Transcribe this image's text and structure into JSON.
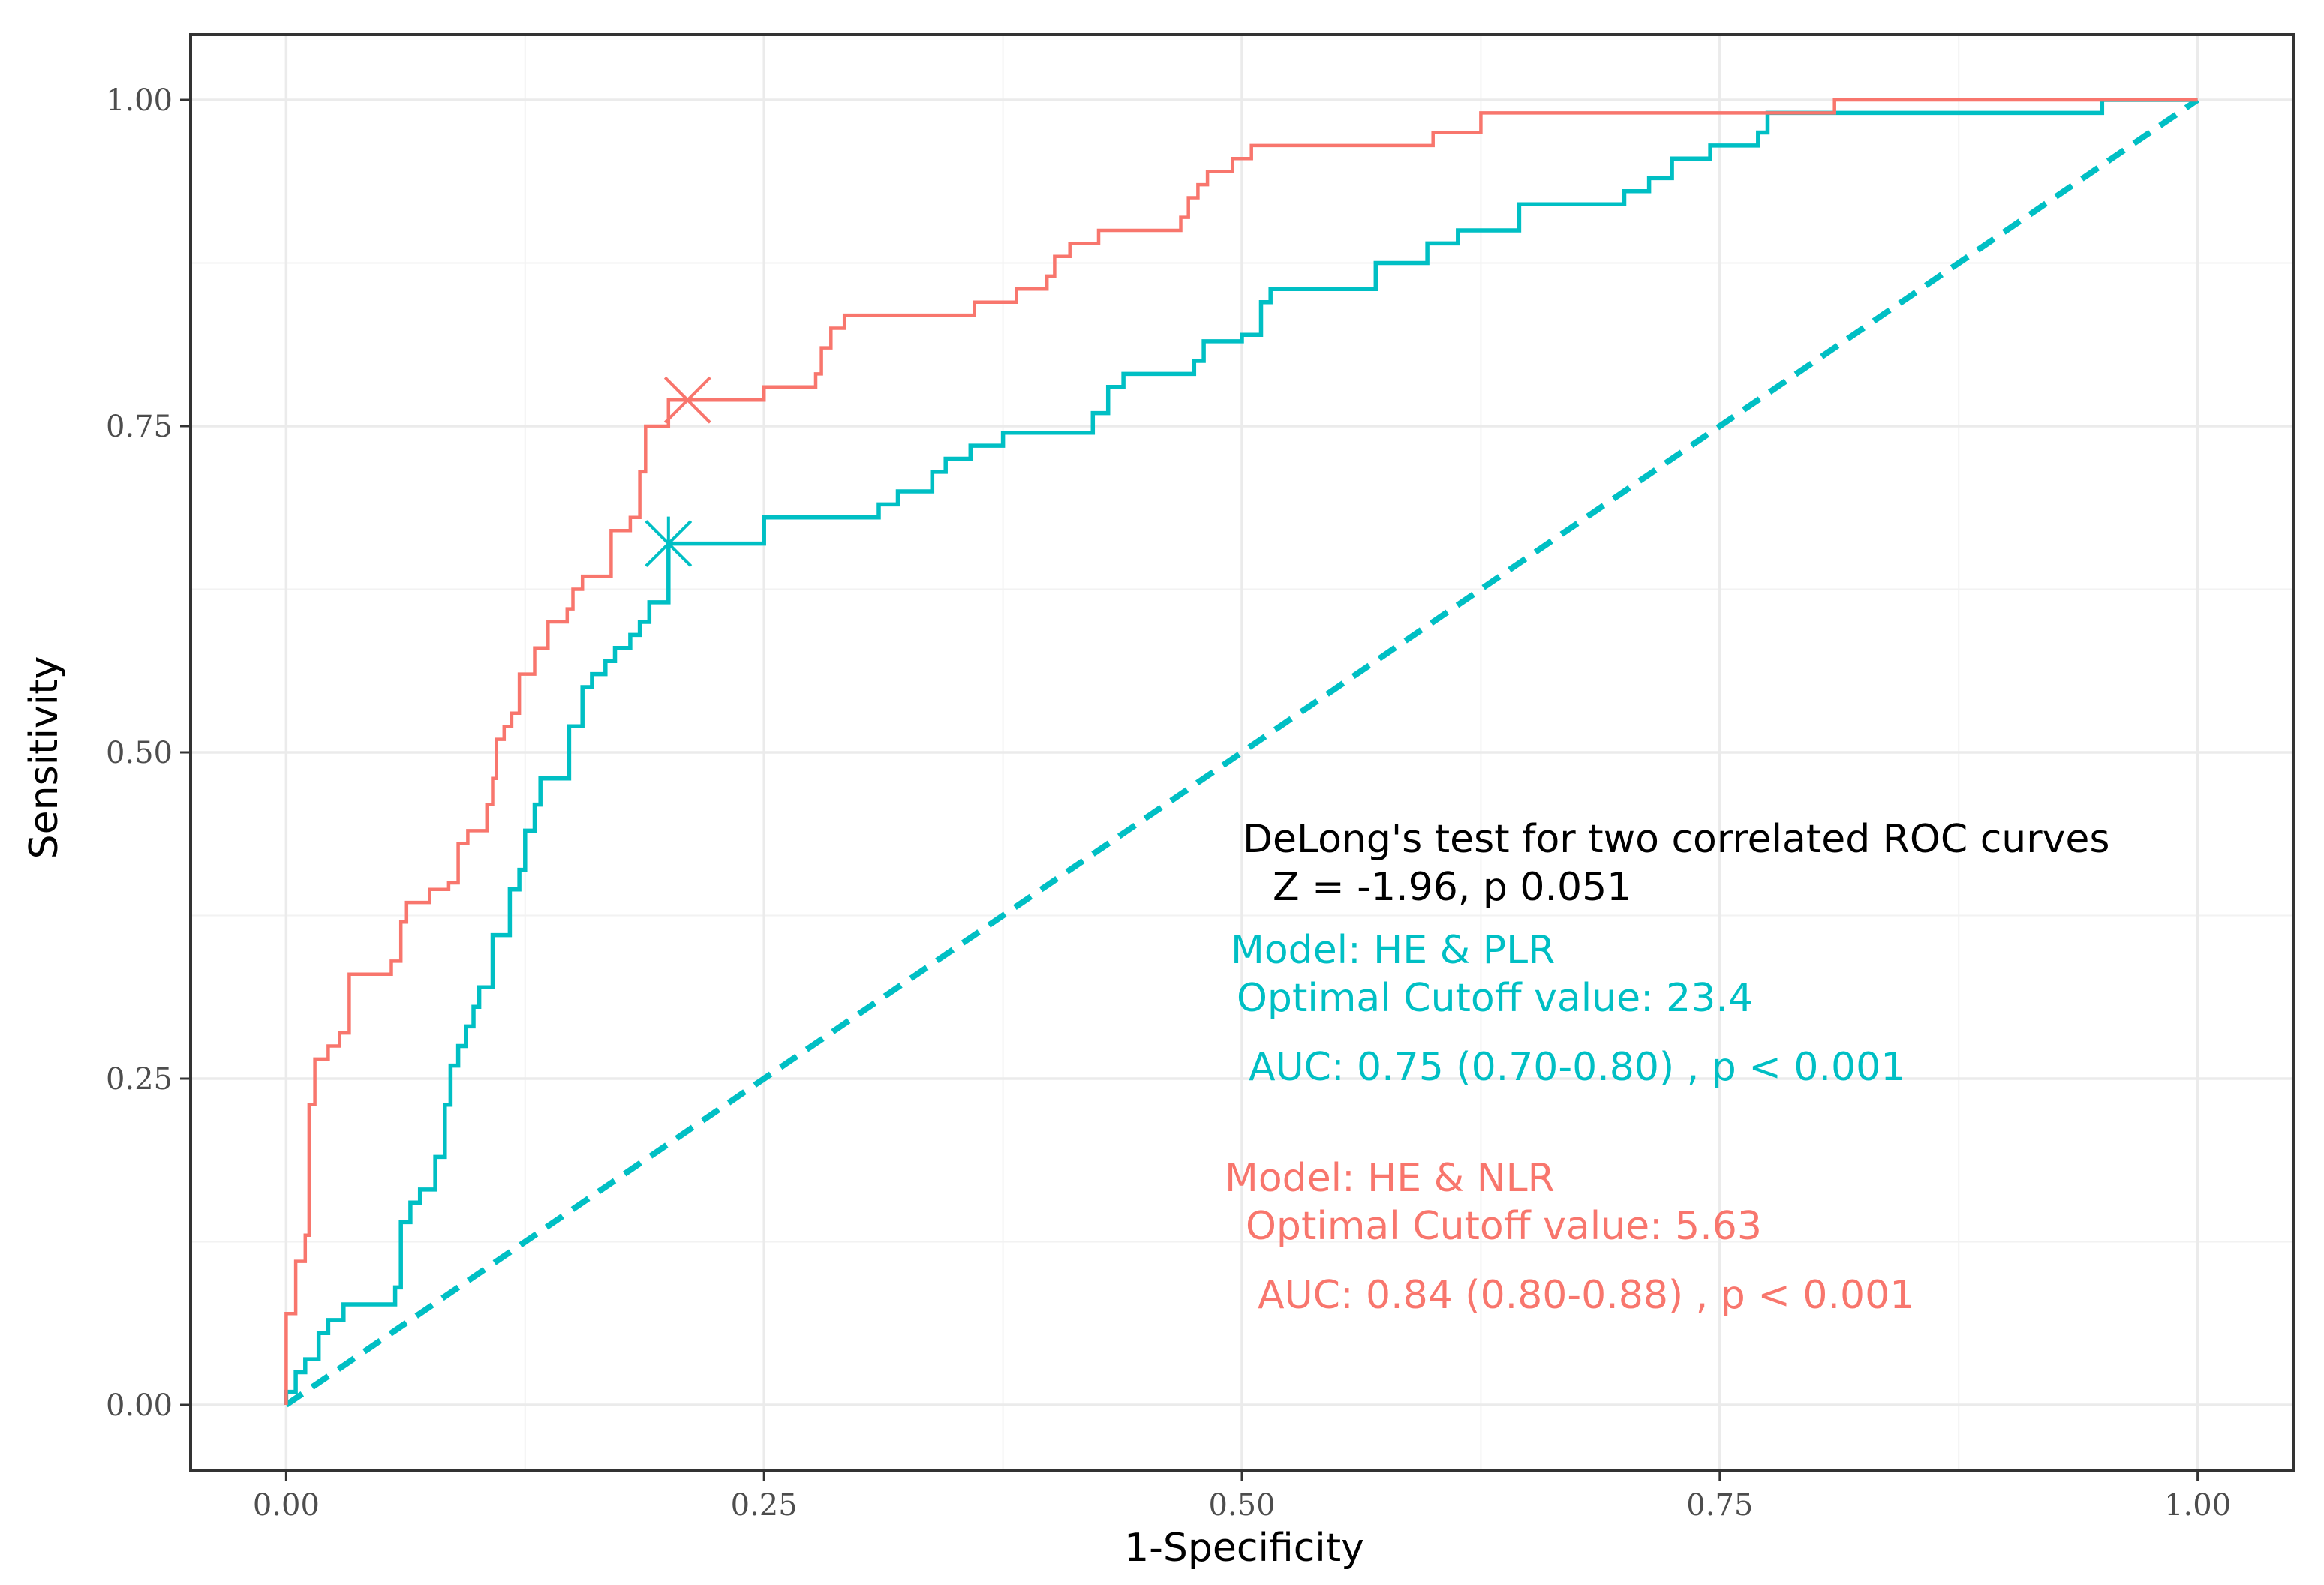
{
  "chart_data": {
    "type": "line",
    "xlabel": "1-Specificity",
    "ylabel": "Sensitivity",
    "xlim": [
      -0.05,
      1.05
    ],
    "ylim": [
      -0.05,
      1.05
    ],
    "x_ticks": [
      0,
      0.25,
      0.5,
      0.75,
      1.0
    ],
    "x_tick_labels": [
      "0.00",
      "0.25",
      "0.50",
      "0.75",
      "1.00"
    ],
    "y_ticks": [
      0,
      0.25,
      0.5,
      0.75,
      1.0
    ],
    "y_tick_labels": [
      "0.00",
      "0.25",
      "0.50",
      "0.75",
      "1.00"
    ],
    "grid": true,
    "colors": {
      "nlr": "#F8766D",
      "plr": "#00BFC4"
    },
    "series": [
      {
        "name": "Model: HE & NLR",
        "color": "#F8766D",
        "optimal_point": [
          0.21,
          0.77
        ],
        "points": [
          [
            0,
            0
          ],
          [
            0,
            0.07
          ],
          [
            0.005,
            0.07
          ],
          [
            0.005,
            0.11
          ],
          [
            0.01,
            0.11
          ],
          [
            0.01,
            0.13
          ],
          [
            0.012,
            0.13
          ],
          [
            0.012,
            0.23
          ],
          [
            0.015,
            0.23
          ],
          [
            0.015,
            0.265
          ],
          [
            0.022,
            0.265
          ],
          [
            0.022,
            0.275
          ],
          [
            0.028,
            0.275
          ],
          [
            0.028,
            0.285
          ],
          [
            0.033,
            0.285
          ],
          [
            0.033,
            0.33
          ],
          [
            0.055,
            0.33
          ],
          [
            0.055,
            0.34
          ],
          [
            0.06,
            0.34
          ],
          [
            0.06,
            0.37
          ],
          [
            0.063,
            0.37
          ],
          [
            0.063,
            0.385
          ],
          [
            0.075,
            0.385
          ],
          [
            0.075,
            0.395
          ],
          [
            0.085,
            0.395
          ],
          [
            0.085,
            0.4
          ],
          [
            0.09,
            0.4
          ],
          [
            0.09,
            0.43
          ],
          [
            0.095,
            0.43
          ],
          [
            0.095,
            0.44
          ],
          [
            0.105,
            0.44
          ],
          [
            0.105,
            0.46
          ],
          [
            0.108,
            0.46
          ],
          [
            0.108,
            0.48
          ],
          [
            0.11,
            0.48
          ],
          [
            0.11,
            0.51
          ],
          [
            0.114,
            0.51
          ],
          [
            0.114,
            0.52
          ],
          [
            0.118,
            0.52
          ],
          [
            0.118,
            0.53
          ],
          [
            0.122,
            0.53
          ],
          [
            0.122,
            0.56
          ],
          [
            0.13,
            0.56
          ],
          [
            0.13,
            0.58
          ],
          [
            0.137,
            0.58
          ],
          [
            0.137,
            0.6
          ],
          [
            0.147,
            0.6
          ],
          [
            0.147,
            0.61
          ],
          [
            0.15,
            0.61
          ],
          [
            0.15,
            0.625
          ],
          [
            0.155,
            0.625
          ],
          [
            0.155,
            0.635
          ],
          [
            0.17,
            0.635
          ],
          [
            0.17,
            0.67
          ],
          [
            0.18,
            0.67
          ],
          [
            0.18,
            0.68
          ],
          [
            0.185,
            0.68
          ],
          [
            0.185,
            0.715
          ],
          [
            0.188,
            0.715
          ],
          [
            0.188,
            0.75
          ],
          [
            0.2,
            0.75
          ],
          [
            0.2,
            0.77
          ],
          [
            0.25,
            0.77
          ],
          [
            0.25,
            0.78
          ],
          [
            0.277,
            0.78
          ],
          [
            0.277,
            0.79
          ],
          [
            0.28,
            0.79
          ],
          [
            0.28,
            0.81
          ],
          [
            0.285,
            0.81
          ],
          [
            0.285,
            0.825
          ],
          [
            0.292,
            0.825
          ],
          [
            0.292,
            0.835
          ],
          [
            0.36,
            0.835
          ],
          [
            0.36,
            0.845
          ],
          [
            0.382,
            0.845
          ],
          [
            0.382,
            0.855
          ],
          [
            0.398,
            0.855
          ],
          [
            0.398,
            0.865
          ],
          [
            0.402,
            0.865
          ],
          [
            0.402,
            0.88
          ],
          [
            0.41,
            0.88
          ],
          [
            0.41,
            0.89
          ],
          [
            0.425,
            0.89
          ],
          [
            0.425,
            0.9
          ],
          [
            0.468,
            0.9
          ],
          [
            0.468,
            0.91
          ],
          [
            0.472,
            0.91
          ],
          [
            0.472,
            0.925
          ],
          [
            0.477,
            0.925
          ],
          [
            0.477,
            0.935
          ],
          [
            0.482,
            0.935
          ],
          [
            0.482,
            0.945
          ],
          [
            0.495,
            0.945
          ],
          [
            0.495,
            0.955
          ],
          [
            0.505,
            0.955
          ],
          [
            0.505,
            0.965
          ],
          [
            0.6,
            0.965
          ],
          [
            0.6,
            0.975
          ],
          [
            0.625,
            0.975
          ],
          [
            0.625,
            0.99
          ],
          [
            0.81,
            0.99
          ],
          [
            0.81,
            1.0
          ],
          [
            1.0,
            1.0
          ]
        ]
      },
      {
        "name": "Model: HE & PLR",
        "color": "#00BFC4",
        "optimal_point": [
          0.2,
          0.66
        ],
        "points": [
          [
            0,
            0
          ],
          [
            0,
            0.01
          ],
          [
            0.005,
            0.01
          ],
          [
            0.005,
            0.025
          ],
          [
            0.01,
            0.025
          ],
          [
            0.01,
            0.035
          ],
          [
            0.017,
            0.035
          ],
          [
            0.017,
            0.055
          ],
          [
            0.022,
            0.055
          ],
          [
            0.022,
            0.065
          ],
          [
            0.03,
            0.065
          ],
          [
            0.03,
            0.077
          ],
          [
            0.057,
            0.077
          ],
          [
            0.057,
            0.09
          ],
          [
            0.06,
            0.09
          ],
          [
            0.06,
            0.14
          ],
          [
            0.065,
            0.14
          ],
          [
            0.065,
            0.155
          ],
          [
            0.07,
            0.155
          ],
          [
            0.07,
            0.165
          ],
          [
            0.078,
            0.165
          ],
          [
            0.078,
            0.19
          ],
          [
            0.083,
            0.19
          ],
          [
            0.083,
            0.23
          ],
          [
            0.086,
            0.23
          ],
          [
            0.086,
            0.26
          ],
          [
            0.09,
            0.26
          ],
          [
            0.09,
            0.275
          ],
          [
            0.094,
            0.275
          ],
          [
            0.094,
            0.29
          ],
          [
            0.098,
            0.29
          ],
          [
            0.098,
            0.305
          ],
          [
            0.101,
            0.305
          ],
          [
            0.101,
            0.32
          ],
          [
            0.108,
            0.32
          ],
          [
            0.108,
            0.36
          ],
          [
            0.117,
            0.36
          ],
          [
            0.117,
            0.395
          ],
          [
            0.122,
            0.395
          ],
          [
            0.122,
            0.41
          ],
          [
            0.125,
            0.41
          ],
          [
            0.125,
            0.44
          ],
          [
            0.13,
            0.44
          ],
          [
            0.13,
            0.46
          ],
          [
            0.133,
            0.46
          ],
          [
            0.133,
            0.48
          ],
          [
            0.148,
            0.48
          ],
          [
            0.148,
            0.52
          ],
          [
            0.155,
            0.52
          ],
          [
            0.155,
            0.55
          ],
          [
            0.16,
            0.55
          ],
          [
            0.16,
            0.56
          ],
          [
            0.167,
            0.56
          ],
          [
            0.167,
            0.57
          ],
          [
            0.172,
            0.57
          ],
          [
            0.172,
            0.58
          ],
          [
            0.18,
            0.58
          ],
          [
            0.18,
            0.59
          ],
          [
            0.185,
            0.59
          ],
          [
            0.185,
            0.6
          ],
          [
            0.19,
            0.6
          ],
          [
            0.19,
            0.615
          ],
          [
            0.2,
            0.615
          ],
          [
            0.2,
            0.66
          ],
          [
            0.25,
            0.66
          ],
          [
            0.25,
            0.68
          ],
          [
            0.31,
            0.68
          ],
          [
            0.31,
            0.69
          ],
          [
            0.32,
            0.69
          ],
          [
            0.32,
            0.7
          ],
          [
            0.338,
            0.7
          ],
          [
            0.338,
            0.715
          ],
          [
            0.345,
            0.715
          ],
          [
            0.345,
            0.725
          ],
          [
            0.358,
            0.725
          ],
          [
            0.358,
            0.735
          ],
          [
            0.375,
            0.735
          ],
          [
            0.375,
            0.745
          ],
          [
            0.422,
            0.745
          ],
          [
            0.422,
            0.76
          ],
          [
            0.43,
            0.76
          ],
          [
            0.43,
            0.78
          ],
          [
            0.438,
            0.78
          ],
          [
            0.438,
            0.79
          ],
          [
            0.475,
            0.79
          ],
          [
            0.475,
            0.8
          ],
          [
            0.48,
            0.8
          ],
          [
            0.48,
            0.815
          ],
          [
            0.5,
            0.815
          ],
          [
            0.5,
            0.82
          ],
          [
            0.51,
            0.82
          ],
          [
            0.51,
            0.845
          ],
          [
            0.515,
            0.845
          ],
          [
            0.515,
            0.855
          ],
          [
            0.57,
            0.855
          ],
          [
            0.57,
            0.875
          ],
          [
            0.597,
            0.875
          ],
          [
            0.597,
            0.89
          ],
          [
            0.613,
            0.89
          ],
          [
            0.613,
            0.9
          ],
          [
            0.645,
            0.9
          ],
          [
            0.645,
            0.92
          ],
          [
            0.7,
            0.92
          ],
          [
            0.7,
            0.93
          ],
          [
            0.713,
            0.93
          ],
          [
            0.713,
            0.94
          ],
          [
            0.725,
            0.94
          ],
          [
            0.725,
            0.955
          ],
          [
            0.745,
            0.955
          ],
          [
            0.745,
            0.965
          ],
          [
            0.77,
            0.965
          ],
          [
            0.77,
            0.975
          ],
          [
            0.775,
            0.975
          ],
          [
            0.775,
            0.99
          ],
          [
            0.95,
            0.99
          ],
          [
            0.95,
            1.0
          ],
          [
            1.0,
            1.0
          ]
        ]
      }
    ],
    "reference_line": {
      "from": [
        0,
        0
      ],
      "to": [
        1,
        1
      ],
      "color": "#00BFC4",
      "style": "dashed"
    },
    "annotations": {
      "delong_title": "DeLong's test for two correlated ROC curves",
      "delong_stat": "Z = -1.96, p 0.051",
      "plr_model": "Model: HE & PLR",
      "plr_cutoff": "Optimal Cutoff value:  23.4",
      "plr_auc": "AUC:  0.75 (0.70-0.80) , p < 0.001",
      "nlr_model": "Model: HE & NLR",
      "nlr_cutoff": "Optimal Cutoff value:  5.63",
      "nlr_auc": "AUC:  0.84 (0.80-0.88) , p < 0.001"
    }
  }
}
